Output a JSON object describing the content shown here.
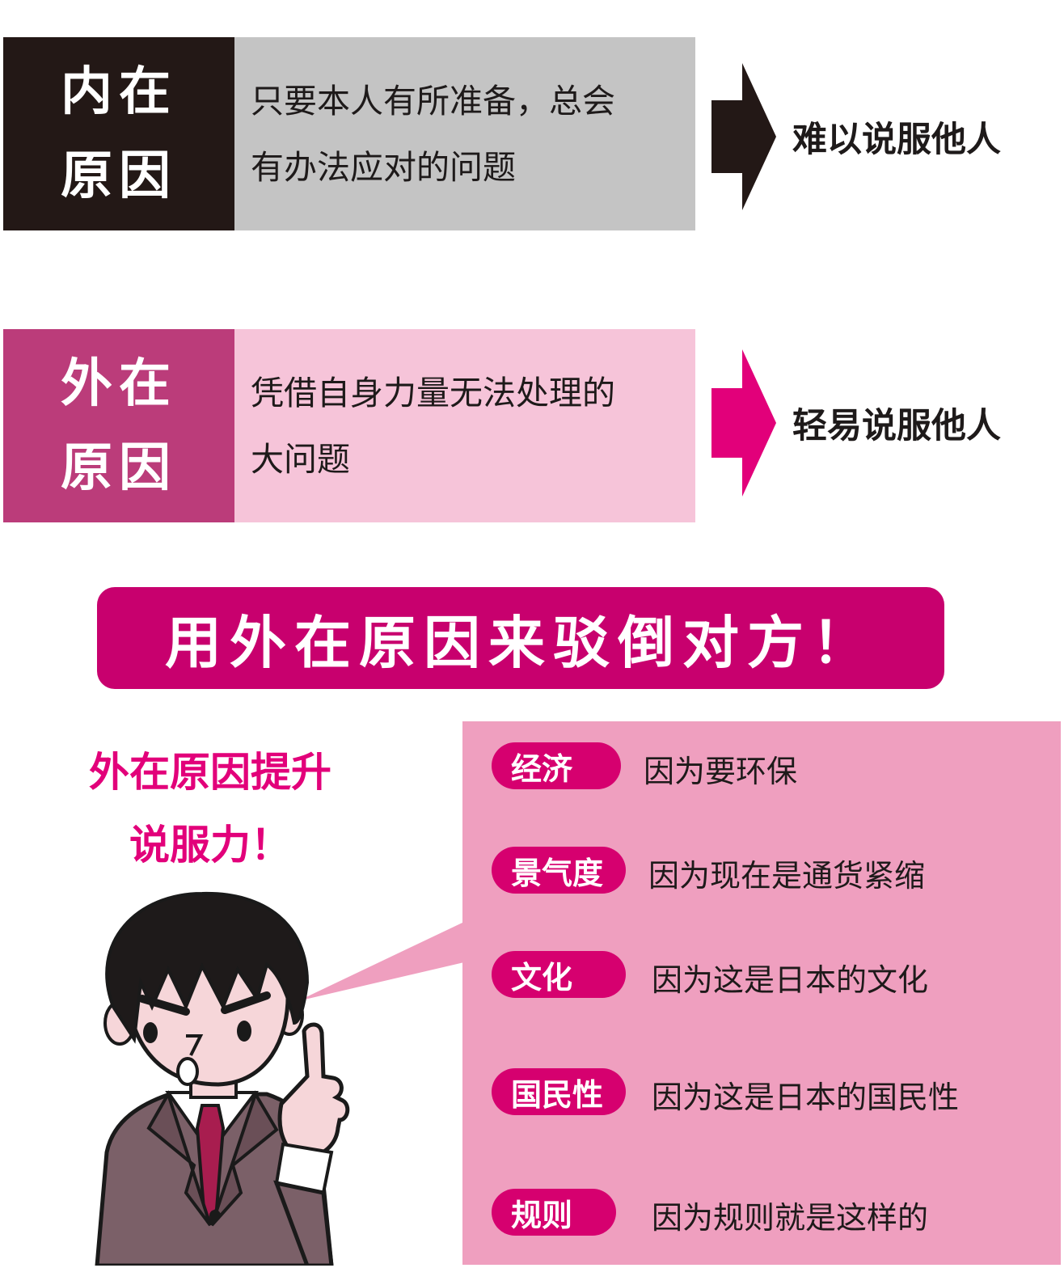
{
  "colors": {
    "internal_dark": "#231816",
    "internal_light": "#c4c4c4",
    "external_dark": "#bb3c7a",
    "external_light": "#f6c4d9",
    "accent": "#c8006e",
    "magenta": "#e2007a",
    "panel": "#ef9fbf",
    "tag": "#d6006f"
  },
  "internal": {
    "label_line1": "内在",
    "label_line2": "原因",
    "desc_line1": "只要本人有所准备，总会",
    "desc_line2": "有办法应对的问题",
    "result": "难以说服他人"
  },
  "external": {
    "label_line1": "外在",
    "label_line2": "原因",
    "desc_line1": "凭借自身力量无法处理的",
    "desc_line2": "大问题",
    "result": "轻易说服他人"
  },
  "banner": "用外在原因来驳倒对方！",
  "callout": {
    "line1": "外在原因提升",
    "line2": "说服力！"
  },
  "reasons": [
    {
      "tag": "经济",
      "text": "因为要环保"
    },
    {
      "tag": "景气度",
      "text": "因为现在是通货紧缩"
    },
    {
      "tag": "文化",
      "text": "因为这是日本的文化"
    },
    {
      "tag": "国民性",
      "text": "因为这是日本的国民性"
    },
    {
      "tag": "规则",
      "text": "因为规则就是这样的"
    }
  ]
}
